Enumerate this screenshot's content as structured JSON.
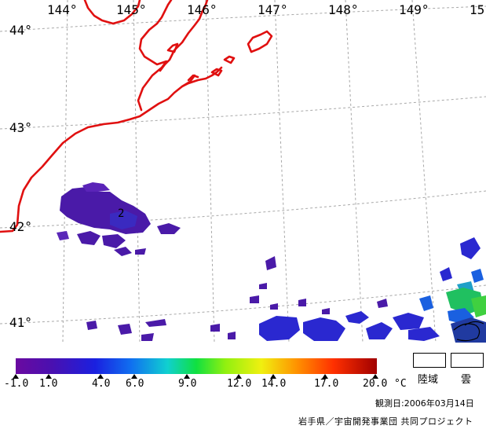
{
  "map": {
    "lon_labels": [
      "144°",
      "145°",
      "146°",
      "147°",
      "148°",
      "149°",
      "15"
    ],
    "lat_labels": [
      "44°",
      "43°",
      "42°",
      "41°"
    ],
    "contour_label": "2",
    "colors": {
      "coastline": "#e01010",
      "grid": "#a8a8a8",
      "cold": "#4a1aa8",
      "mid": "#2a28d0"
    }
  },
  "legend": {
    "tick_labels": [
      "-1.0",
      "1.0",
      "4.0",
      "6.0",
      "9.0",
      "12.0",
      "14.0",
      "17.0",
      "20.0"
    ],
    "unit": "°C",
    "land_label": "陸域",
    "cloud_label": "雲"
  },
  "footer": {
    "date": "観測日:2006年03月14日",
    "credit": "岩手県／宇宙開発事業団 共同プロジェクト"
  }
}
